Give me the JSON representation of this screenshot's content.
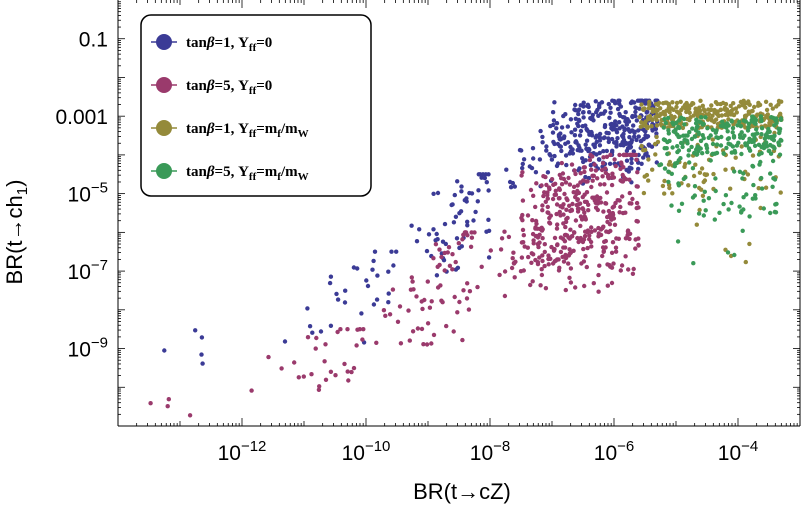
{
  "chart_data": {
    "type": "scatter",
    "xlabel": "BR(t→cZ)",
    "ylabel": "BR(t→ch",
    "ylabel_sub": "1",
    "ylabel_close": ")",
    "x_scale": "log",
    "y_scale": "log",
    "xlim": [
      1e-14,
      0.001
    ],
    "ylim": [
      1e-11,
      1
    ],
    "x_ticks": [
      {
        "value": 1e-12,
        "base": "10",
        "exp": "−12"
      },
      {
        "value": 1e-10,
        "base": "10",
        "exp": "−10"
      },
      {
        "value": 1e-08,
        "base": "10",
        "exp": "−8"
      },
      {
        "value": 1e-06,
        "base": "10",
        "exp": "−6"
      },
      {
        "value": 0.0001,
        "base": "10",
        "exp": "−4"
      }
    ],
    "y_ticks": [
      {
        "value": 0.1,
        "label": "0.1"
      },
      {
        "value": 0.001,
        "label": "0.001"
      },
      {
        "value": 1e-05,
        "base": "10",
        "exp": "−5"
      },
      {
        "value": 1e-07,
        "base": "10",
        "exp": "−7"
      },
      {
        "value": 1e-09,
        "base": "10",
        "exp": "−9"
      }
    ],
    "grid": false,
    "legend_position": "top-left",
    "series": [
      {
        "color": "#3b3b96",
        "legend": {
          "a": "tan",
          "greek": "β",
          "b": "=1, Y",
          "sub": "ff",
          "c": "=0"
        },
        "regions": [
          {
            "n": 200,
            "logx": [
              -8.0,
              -5.3
            ],
            "logy": [
              -5.0,
              -2.6
            ],
            "tri": true
          },
          {
            "n": 160,
            "logx": [
              -7.0,
              -5.3
            ],
            "logy": [
              -4.0,
              -2.6
            ]
          },
          {
            "n": 60,
            "logx": [
              -9.6,
              -8.0
            ],
            "logy": [
              -7.5,
              -4.5
            ],
            "tri": true
          },
          {
            "n": 30,
            "logx": [
              -11.5,
              -9.5
            ],
            "logy": [
              -9.2,
              -6.5
            ],
            "tri": true
          },
          {
            "n": 5,
            "logx": [
              -13.6,
              -12.5
            ],
            "logy": [
              -9.8,
              -8.5
            ]
          }
        ]
      },
      {
        "color": "#9a3a6c",
        "legend": {
          "a": "tan",
          "greek": "β",
          "b": "=5, Y",
          "sub": "ff",
          "c": "=0"
        },
        "regions": [
          {
            "n": 280,
            "logx": [
              -8.2,
              -5.6
            ],
            "logy": [
              -8.0,
              -4.0
            ],
            "tri": true
          },
          {
            "n": 140,
            "logx": [
              -7.5,
              -6.0
            ],
            "logy": [
              -7.0,
              -4.4
            ]
          },
          {
            "n": 70,
            "logx": [
              -10.0,
              -8.2
            ],
            "logy": [
              -9.5,
              -6.0
            ],
            "tri": true
          },
          {
            "n": 30,
            "logx": [
              -12.2,
              -10.0
            ],
            "logy": [
              -10.6,
              -8.5
            ],
            "tri": true
          },
          {
            "n": 4,
            "logx": [
              -13.6,
              -12.8
            ],
            "logy": [
              -10.9,
              -10.3
            ]
          }
        ]
      },
      {
        "color": "#948a3a",
        "legend": {
          "a": "tan",
          "greek": "β",
          "b": "=1, Y",
          "sub": "ff",
          "c": "=m",
          "c_sub": "f",
          "d": "/m",
          "d_sub": "W"
        },
        "regions": [
          {
            "n": 260,
            "logx": [
              -5.6,
              -3.3
            ],
            "logy": [
              -3.3,
              -2.6
            ]
          },
          {
            "n": 80,
            "logx": [
              -5.6,
              -3.3
            ],
            "logy": [
              -5.0,
              -3.3
            ]
          },
          {
            "n": 8,
            "logx": [
              -5.0,
              -3.5
            ],
            "logy": [
              -6.8,
              -5.0
            ]
          }
        ]
      },
      {
        "color": "#3a9a58",
        "legend": {
          "a": "tan",
          "greek": "β",
          "b": "=5, Y",
          "sub": "ff",
          "c": "=m",
          "c_sub": "f",
          "d": "/m",
          "d_sub": "W"
        },
        "regions": [
          {
            "n": 220,
            "logx": [
              -5.2,
              -3.3
            ],
            "logy": [
              -4.0,
              -3.0
            ]
          },
          {
            "n": 70,
            "logx": [
              -5.3,
              -3.3
            ],
            "logy": [
              -5.6,
              -4.0
            ]
          },
          {
            "n": 6,
            "logx": [
              -5.0,
              -3.6
            ],
            "logy": [
              -6.8,
              -5.6
            ]
          }
        ]
      }
    ]
  }
}
